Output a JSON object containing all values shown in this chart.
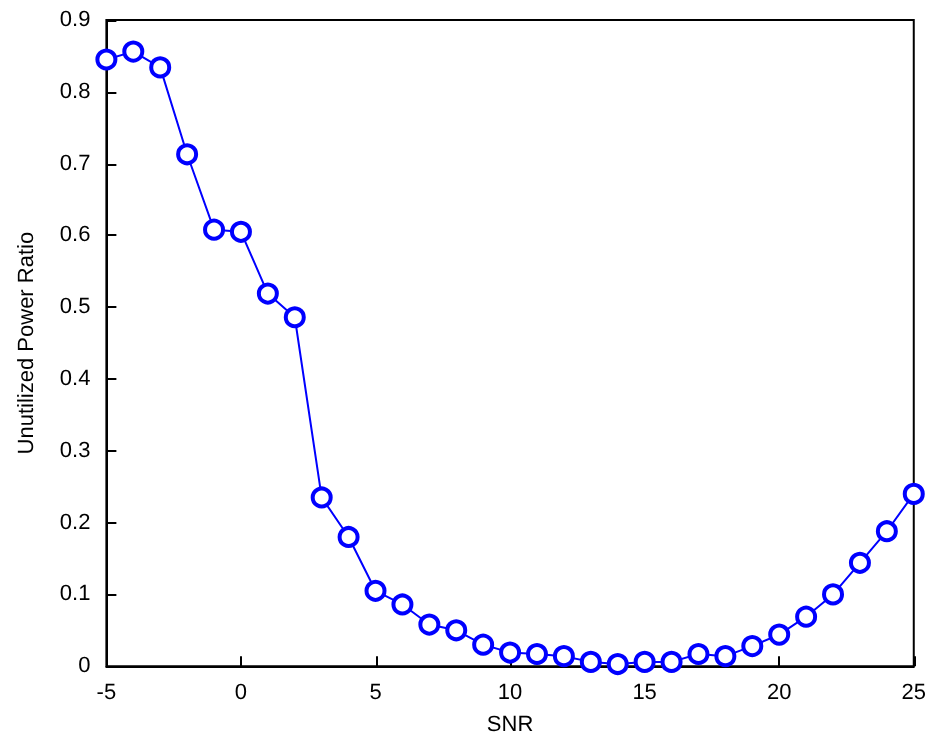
{
  "chart_data": {
    "type": "line",
    "xlabel": "SNR",
    "ylabel": "Unutilized Power Ratio",
    "x": [
      -5,
      -4,
      -3,
      -2,
      -1,
      0,
      1,
      2,
      3,
      4,
      5,
      6,
      7,
      8,
      9,
      10,
      11,
      12,
      13,
      14,
      15,
      16,
      17,
      18,
      19,
      20,
      21,
      22,
      23,
      24,
      25
    ],
    "series": [
      {
        "color": "#0000ff",
        "values": [
          0.845,
          0.856,
          0.834,
          0.713,
          0.608,
          0.605,
          0.519,
          0.486,
          0.235,
          0.18,
          0.105,
          0.086,
          0.058,
          0.05,
          0.03,
          0.019,
          0.017,
          0.014,
          0.006,
          0.003,
          0.006,
          0.006,
          0.017,
          0.014,
          0.028,
          0.044,
          0.069,
          0.1,
          0.144,
          0.188,
          0.24
        ]
      }
    ],
    "xlim": [
      -5,
      25
    ],
    "xticks": [
      -5,
      0,
      5,
      10,
      15,
      20,
      25
    ],
    "ylim": [
      0,
      0.9
    ],
    "yticks": [
      0,
      0.1,
      0.2,
      0.3,
      0.4,
      0.5,
      0.6,
      0.7,
      0.8,
      0.9
    ],
    "grid": false,
    "marker": "circle",
    "line_style": "solid"
  }
}
